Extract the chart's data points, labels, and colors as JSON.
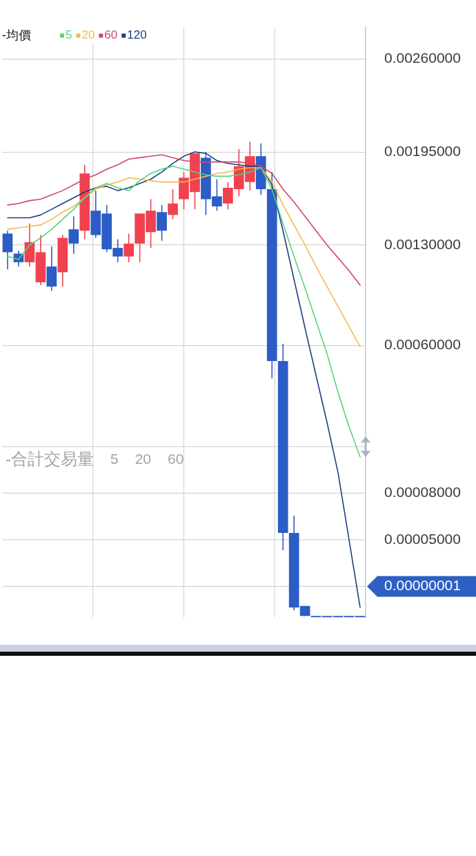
{
  "chart_data": {
    "type": "candlestick",
    "categories": [
      null,
      null,
      null,
      null,
      null,
      null,
      null,
      null,
      null,
      null,
      null,
      null,
      null,
      null,
      null,
      null,
      null,
      null,
      null,
      null,
      null,
      null,
      null,
      null,
      null,
      null,
      null,
      null,
      null,
      null,
      null,
      null,
      null
    ],
    "ohlc": [
      [
        0.00138,
        0.0014,
        0.00113,
        0.00125
      ],
      [
        0.00124,
        0.00126,
        0.00115,
        0.00118
      ],
      [
        0.00118,
        0.00145,
        0.00115,
        0.00132
      ],
      [
        0.00104,
        0.00137,
        0.00102,
        0.00125
      ],
      [
        0.00115,
        0.00129,
        0.00098,
        0.00101
      ],
      [
        0.00111,
        0.00137,
        0.00101,
        0.00135
      ],
      [
        0.00141,
        0.0015,
        0.00124,
        0.00131
      ],
      [
        0.0014,
        0.00186,
        0.00134,
        0.0018
      ],
      [
        0.00154,
        0.00168,
        0.00135,
        0.00137
      ],
      [
        0.00152,
        0.00158,
        0.00125,
        0.00127
      ],
      [
        0.00128,
        0.00134,
        0.00118,
        0.00122
      ],
      [
        0.00122,
        0.00138,
        0.00118,
        0.00131
      ],
      [
        0.00131,
        0.00152,
        0.00118,
        0.00152
      ],
      [
        0.00139,
        0.00162,
        0.00128,
        0.00154
      ],
      [
        0.00153,
        0.00158,
        0.00133,
        0.0014
      ],
      [
        0.00151,
        0.00169,
        0.00148,
        0.00159
      ],
      [
        0.00162,
        0.00181,
        0.00155,
        0.00177
      ],
      [
        0.00167,
        0.00194,
        0.00155,
        0.00194
      ],
      [
        0.00191,
        0.00195,
        0.00151,
        0.00162
      ],
      [
        0.00164,
        0.00176,
        0.00154,
        0.00157
      ],
      [
        0.00159,
        0.00174,
        0.00155,
        0.0017
      ],
      [
        0.00169,
        0.00197,
        0.00164,
        0.00185
      ],
      [
        0.00174,
        0.00202,
        0.00168,
        0.00192
      ],
      [
        0.00192,
        0.00201,
        0.00165,
        0.00169
      ],
      [
        0.00169,
        0.00181,
        0.00037,
        0.00049
      ],
      [
        0.00049,
        0.00061,
        -0.00083,
        -0.00071
      ],
      [
        -0.00071,
        -0.00059,
        -0.00125,
        -0.00123
      ],
      [
        -0.00122,
        -0.00122,
        -0.00129,
        -0.00129
      ],
      [
        -0.00129,
        -0.00129,
        -0.00129,
        -0.00129
      ],
      [
        -0.00129,
        -0.00129,
        -0.00129,
        -0.00129
      ],
      [
        -0.00129,
        -0.00129,
        -0.00129,
        -0.00129
      ],
      [
        -0.00129,
        -0.00129,
        -0.00129,
        -0.00129
      ],
      [
        -0.00129,
        -0.00129,
        -0.00129,
        -0.00129
      ]
    ],
    "colors": [
      "#2c5cc5",
      "#2c5cc5",
      "#f0414f",
      "#f0414f",
      "#2c5cc5",
      "#f0414f",
      "#2c5cc5",
      "#f0414f",
      "#2c5cc5",
      "#2c5cc5",
      "#2c5cc5",
      "#f0414f",
      "#f0414f",
      "#f0414f",
      "#2c5cc5",
      "#f0414f",
      "#f0414f",
      "#f0414f",
      "#2c5cc5",
      "#2c5cc5",
      "#f0414f",
      "#f0414f",
      "#f0414f",
      "#2c5cc5",
      "#2c5cc5",
      "#2c5cc5",
      "#2c5cc5",
      "#2c5cc5",
      "#2c5cc5",
      "#2c5cc5",
      "#2c5cc5",
      "#2c5cc5",
      "#2c5cc5"
    ],
    "series": [
      {
        "name": "5",
        "type": "line",
        "color": "#58d27e",
        "values": [
          0.00122,
          0.0012,
          0.0013,
          0.00135,
          0.00141,
          0.00148,
          0.00155,
          0.00163,
          0.0017,
          0.00173,
          0.0017,
          0.00168,
          0.00175,
          0.0018,
          0.00183,
          0.00185,
          0.00183,
          0.00181,
          0.00179,
          0.00178,
          0.00178,
          0.00179,
          0.00181,
          0.00184,
          0.00169,
          0.00145,
          0.00122,
          0.001,
          0.00077,
          0.00054,
          0.00027,
          3e-05,
          -0.00018
        ]
      },
      {
        "name": "20",
        "type": "line",
        "color": "#f4bb4a",
        "values": [
          0.00141,
          0.00142,
          0.00143,
          0.00144,
          0.00148,
          0.00153,
          0.00157,
          0.00163,
          0.00169,
          0.00172,
          0.00174,
          0.00177,
          0.00176,
          0.00175,
          0.00174,
          0.00174,
          0.00174,
          0.00176,
          0.00178,
          0.0018,
          0.00181,
          0.00183,
          0.00184,
          0.00184,
          0.00174,
          0.00158,
          0.00144,
          0.0013,
          0.00115,
          0.00101,
          0.00087,
          0.00073,
          0.00059
        ]
      },
      {
        "name": "60",
        "type": "line",
        "color": "#d2466a",
        "values": [
          0.00158,
          0.00159,
          0.00161,
          0.00162,
          0.00165,
          0.00168,
          0.00172,
          0.00176,
          0.00179,
          0.00183,
          0.00186,
          0.0019,
          0.00191,
          0.00192,
          0.00193,
          0.00191,
          0.00189,
          0.00188,
          0.00188,
          0.00188,
          0.00188,
          0.00188,
          0.00187,
          0.00185,
          0.0018,
          0.00169,
          0.0016,
          0.0015,
          0.0014,
          0.0013,
          0.00121,
          0.00112,
          0.00102
        ]
      },
      {
        "name": "120",
        "type": "line",
        "color": "#1c3f80",
        "values": [
          0.00149,
          0.00149,
          0.00149,
          0.00151,
          0.00155,
          0.00159,
          0.00163,
          0.00167,
          0.0017,
          0.00171,
          0.00168,
          0.0017,
          0.00173,
          0.00176,
          0.00181,
          0.00187,
          0.00192,
          0.00195,
          0.00194,
          0.00189,
          0.00187,
          0.00186,
          0.00185,
          0.00185,
          0.00172,
          0.0014,
          0.00106,
          0.00072,
          0.00039,
          6e-05,
          -0.00029,
          -0.00076,
          -0.00123
        ]
      }
    ],
    "legend_title": "-均價",
    "legend": "top left",
    "ylim": [
      -0.0013,
      0.00282
    ],
    "yticks": [
      {
        "value": 0.0026,
        "label": "0.00260000"
      },
      {
        "value": 0.00195,
        "label": "0.00195000"
      },
      {
        "value": 0.0013,
        "label": "0.00130000"
      },
      {
        "value": 0.0006,
        "label": "0.00060000"
      }
    ],
    "y2lim": [
      0,
      0.00038
    ],
    "y2ticks": [
      {
        "value": 0.00011,
        "label": null
      },
      {
        "value": 8e-05,
        "label": "0.00008000"
      },
      {
        "value": 5e-05,
        "label": "0.00005000"
      },
      {
        "value": 2e-05,
        "label": null
      }
    ],
    "grid": true,
    "tick_labels": "y",
    "annotations": [
      "-合計交易量 5 20 60",
      "0.00000001"
    ]
  }
}
